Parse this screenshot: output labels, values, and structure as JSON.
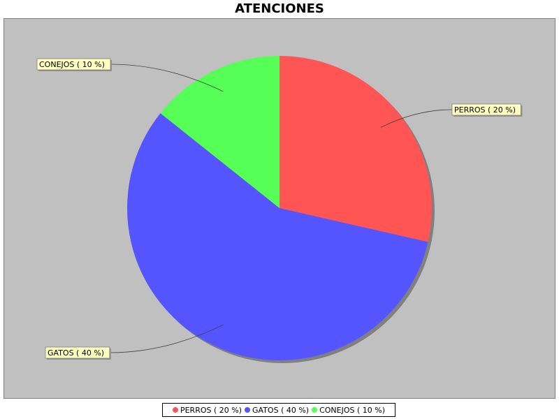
{
  "chart_data": {
    "type": "pie",
    "title": "ATENCIONES",
    "slices": [
      {
        "label": "PERROS",
        "display": "PERROS ( 20 %)",
        "value": 20,
        "color": "#ff5555"
      },
      {
        "label": "GATOS",
        "display": "GATOS ( 40 %)",
        "value": 40,
        "color": "#5555ff"
      },
      {
        "label": "CONEJOS",
        "display": "CONEJOS ( 10 %)",
        "value": 10,
        "color": "#55ff55"
      }
    ],
    "start_angle": "12 o'clock",
    "direction": "clockwise",
    "plot_background": "#c0c0c0",
    "label_background": "#ffffc0",
    "legend_position": "bottom"
  }
}
